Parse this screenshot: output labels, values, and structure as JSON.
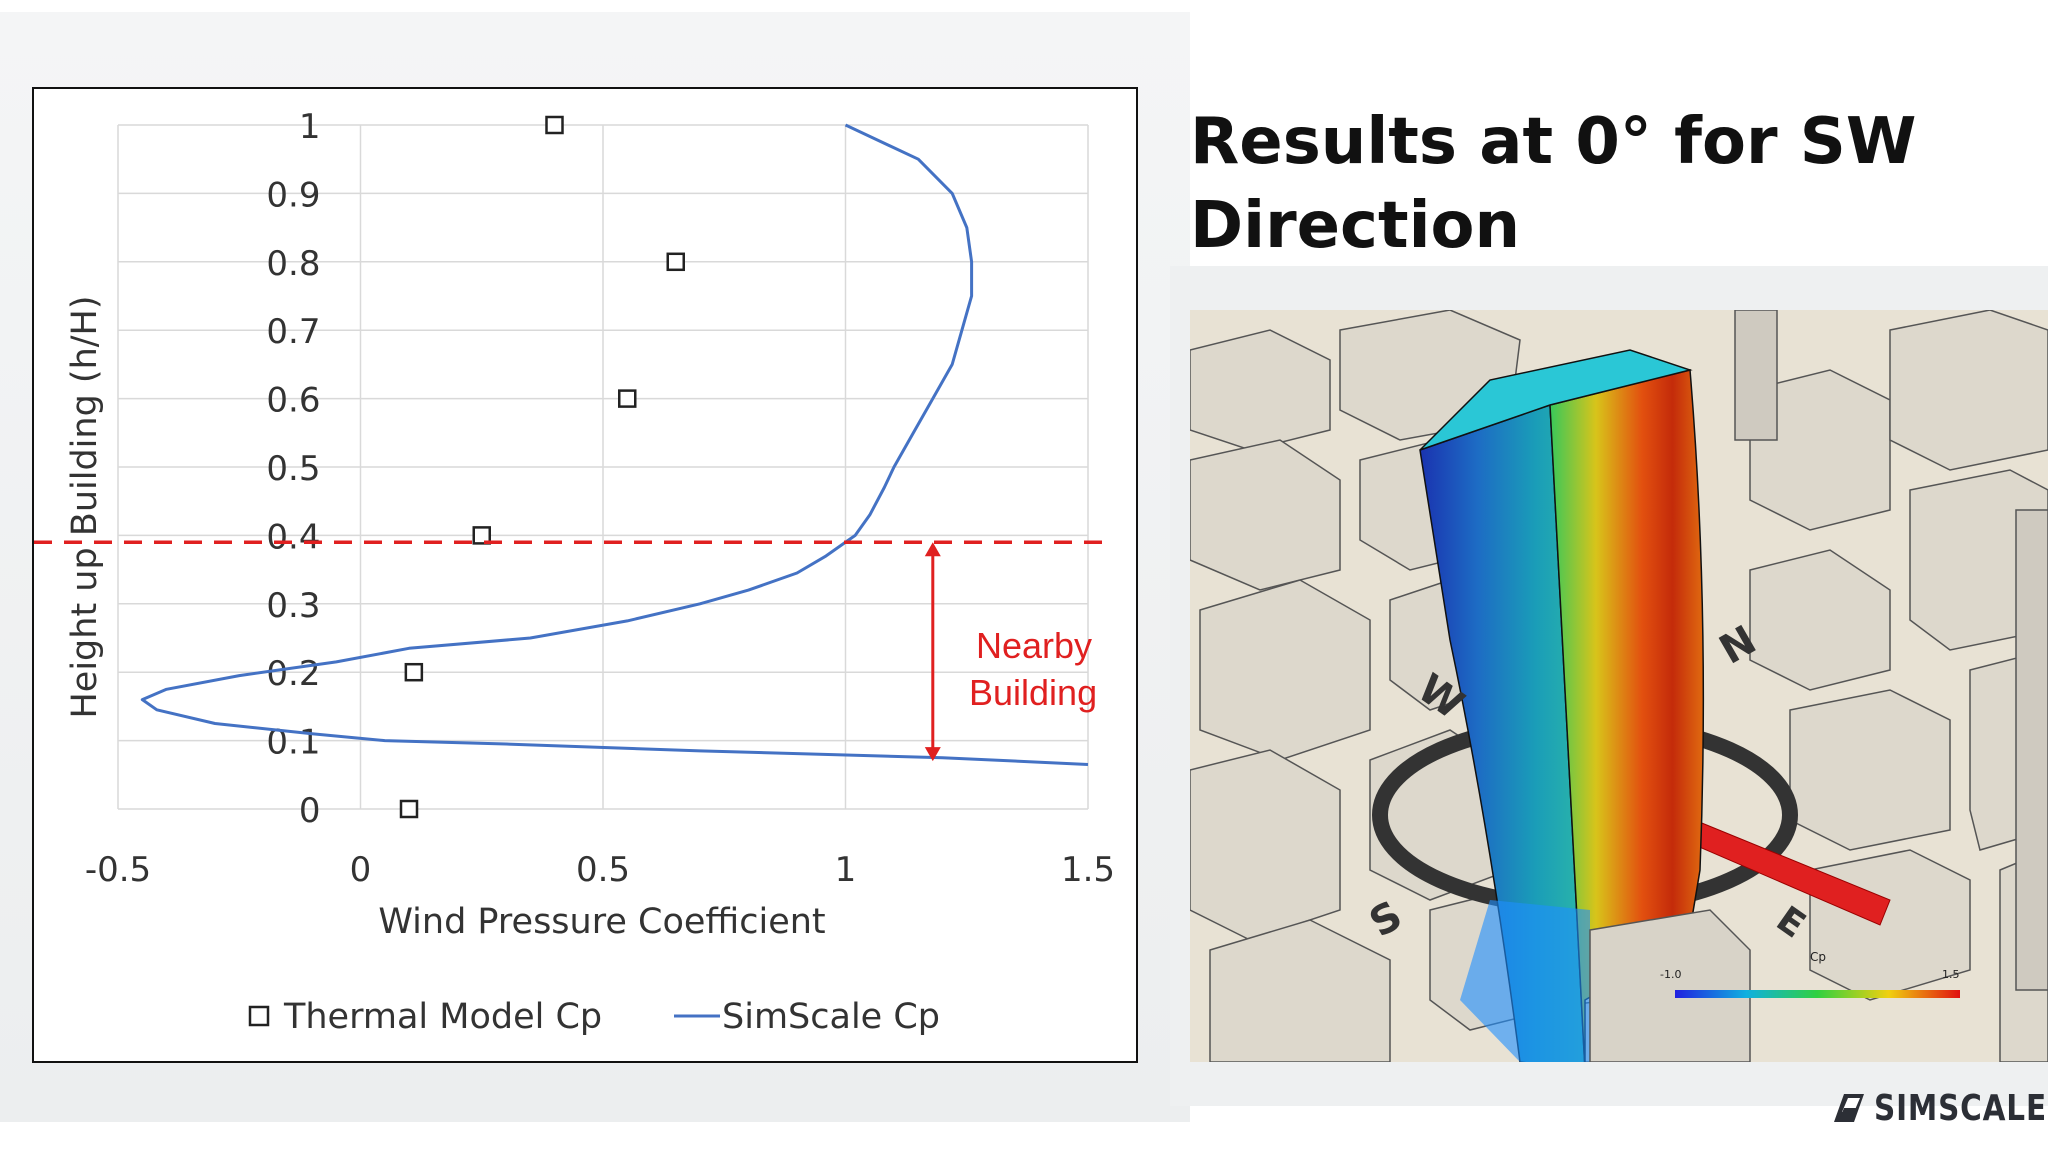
{
  "slide": {
    "title_line1": "Results at 0° for SW",
    "title_line2": "Direction"
  },
  "brand": {
    "name": "SIMSCALE",
    "icon": "simscale-logo-icon"
  },
  "annotation": {
    "line1": "Nearby",
    "line2": "Building",
    "color": "#e02020"
  },
  "render": {
    "colorbar_title": "Cp",
    "colorbar_min": "-1.0",
    "colorbar_max": "1.5",
    "compass_labels": [
      "W",
      "N",
      "S",
      "E"
    ]
  },
  "chart_data": {
    "type": "scatter",
    "xlabel": "Wind Pressure Coefficient",
    "ylabel": "Height up Building (h/H)",
    "xlim": [
      -0.5,
      1.5
    ],
    "ylim": [
      0,
      1
    ],
    "x_ticks": [
      "-0.5",
      "0",
      "0.5",
      "1",
      "1.5"
    ],
    "y_ticks": [
      "0",
      "0.1",
      "0.2",
      "0.3",
      "0.4",
      "0.5",
      "0.6",
      "0.7",
      "0.8",
      "0.9",
      "1"
    ],
    "grid": true,
    "legend_position": "bottom",
    "reference_line": {
      "y": 0.39,
      "style": "dashed",
      "color": "#e02020"
    },
    "annotation_arrow": {
      "x": 1.18,
      "y_from": 0.07,
      "y_to": 0.39
    },
    "series": [
      {
        "name": "Thermal Model Cp",
        "kind": "markers",
        "marker": "square",
        "points": [
          {
            "x": 0.1,
            "y": 0.0
          },
          {
            "x": 0.11,
            "y": 0.2
          },
          {
            "x": 0.25,
            "y": 0.4
          },
          {
            "x": 0.55,
            "y": 0.6
          },
          {
            "x": 0.65,
            "y": 0.8
          },
          {
            "x": 0.4,
            "y": 1.0
          }
        ]
      },
      {
        "name": "SimScale Cp",
        "kind": "line",
        "color": "#4472c4",
        "points": [
          {
            "x": 1.5,
            "y": 0.065
          },
          {
            "x": 1.2,
            "y": 0.075
          },
          {
            "x": 0.7,
            "y": 0.085
          },
          {
            "x": 0.3,
            "y": 0.095
          },
          {
            "x": 0.05,
            "y": 0.1
          },
          {
            "x": -0.1,
            "y": 0.11
          },
          {
            "x": -0.3,
            "y": 0.125
          },
          {
            "x": -0.42,
            "y": 0.145
          },
          {
            "x": -0.45,
            "y": 0.16
          },
          {
            "x": -0.4,
            "y": 0.175
          },
          {
            "x": -0.25,
            "y": 0.195
          },
          {
            "x": -0.05,
            "y": 0.215
          },
          {
            "x": 0.1,
            "y": 0.235
          },
          {
            "x": 0.35,
            "y": 0.25
          },
          {
            "x": 0.55,
            "y": 0.275
          },
          {
            "x": 0.7,
            "y": 0.3
          },
          {
            "x": 0.8,
            "y": 0.32
          },
          {
            "x": 0.9,
            "y": 0.345
          },
          {
            "x": 0.96,
            "y": 0.37
          },
          {
            "x": 1.02,
            "y": 0.4
          },
          {
            "x": 1.05,
            "y": 0.43
          },
          {
            "x": 1.08,
            "y": 0.47
          },
          {
            "x": 1.1,
            "y": 0.5
          },
          {
            "x": 1.14,
            "y": 0.55
          },
          {
            "x": 1.18,
            "y": 0.6
          },
          {
            "x": 1.22,
            "y": 0.65
          },
          {
            "x": 1.24,
            "y": 0.7
          },
          {
            "x": 1.26,
            "y": 0.75
          },
          {
            "x": 1.26,
            "y": 0.8
          },
          {
            "x": 1.25,
            "y": 0.85
          },
          {
            "x": 1.22,
            "y": 0.9
          },
          {
            "x": 1.15,
            "y": 0.95
          },
          {
            "x": 1.0,
            "y": 1.0
          }
        ]
      }
    ]
  }
}
